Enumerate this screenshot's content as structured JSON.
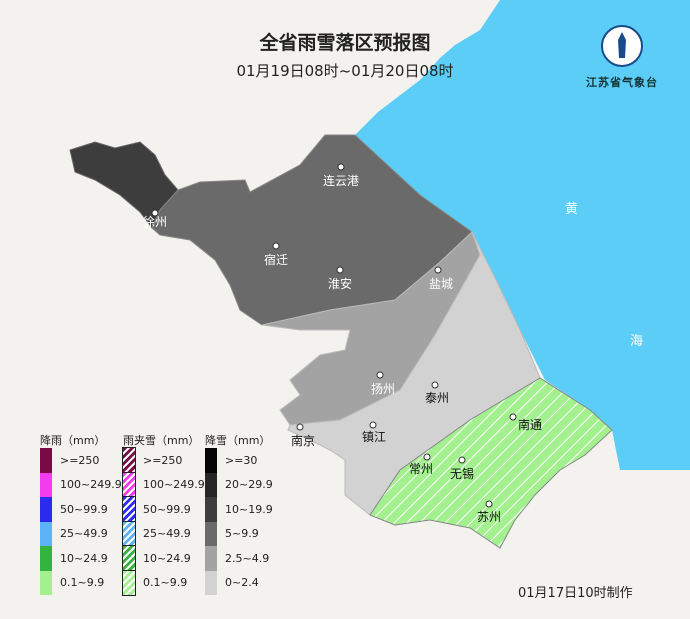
{
  "title": "全省雨雪落区预报图",
  "subtitle": "01月19日08时~01月20日08时",
  "logo_text": "江苏省气象台",
  "sea_labels": [
    "黄",
    "海"
  ],
  "cities": [
    {
      "name": "连云港"
    },
    {
      "name": "徐州"
    },
    {
      "name": "宿迁"
    },
    {
      "name": "淮安"
    },
    {
      "name": "盐城"
    },
    {
      "name": "扬州"
    },
    {
      "name": "泰州"
    },
    {
      "name": "南京"
    },
    {
      "name": "镇江"
    },
    {
      "name": "南通"
    },
    {
      "name": "常州"
    },
    {
      "name": "无锡"
    },
    {
      "name": "苏州"
    }
  ],
  "legend": {
    "rain": {
      "title": "降雨（mm）",
      "items": [
        {
          "label": ">=250",
          "color": "#7a0a45"
        },
        {
          "label": "100~249.9",
          "color": "#f23cf0"
        },
        {
          "label": "50~99.9",
          "color": "#2b2bf0"
        },
        {
          "label": "25~49.9",
          "color": "#5cb4f8"
        },
        {
          "label": "10~24.9",
          "color": "#33b43c"
        },
        {
          "label": "0.1~9.9",
          "color": "#a3f08f"
        }
      ]
    },
    "sleet": {
      "title": "雨夹雪（mm）",
      "items": [
        {
          "label": ">=250",
          "color": "#7a0a45"
        },
        {
          "label": "100~249.9",
          "color": "#f23cf0"
        },
        {
          "label": "50~99.9",
          "color": "#2b2bf0"
        },
        {
          "label": "25~49.9",
          "color": "#5cb4f8"
        },
        {
          "label": "10~24.9",
          "color": "#33b43c"
        },
        {
          "label": "0.1~9.9",
          "color": "#a3f08f"
        }
      ]
    },
    "snow": {
      "title": "降雪（mm）",
      "items": [
        {
          "label": ">=30",
          "color": "#050505"
        },
        {
          "label": "20~29.9",
          "color": "#262626"
        },
        {
          "label": "10~19.9",
          "color": "#3d3d3d"
        },
        {
          "label": "5~9.9",
          "color": "#6a6a6a"
        },
        {
          "label": "2.5~4.9",
          "color": "#a3a3a3"
        },
        {
          "label": "0~2.4",
          "color": "#d2d2d2"
        }
      ]
    }
  },
  "footer": "01月17日10时制作"
}
